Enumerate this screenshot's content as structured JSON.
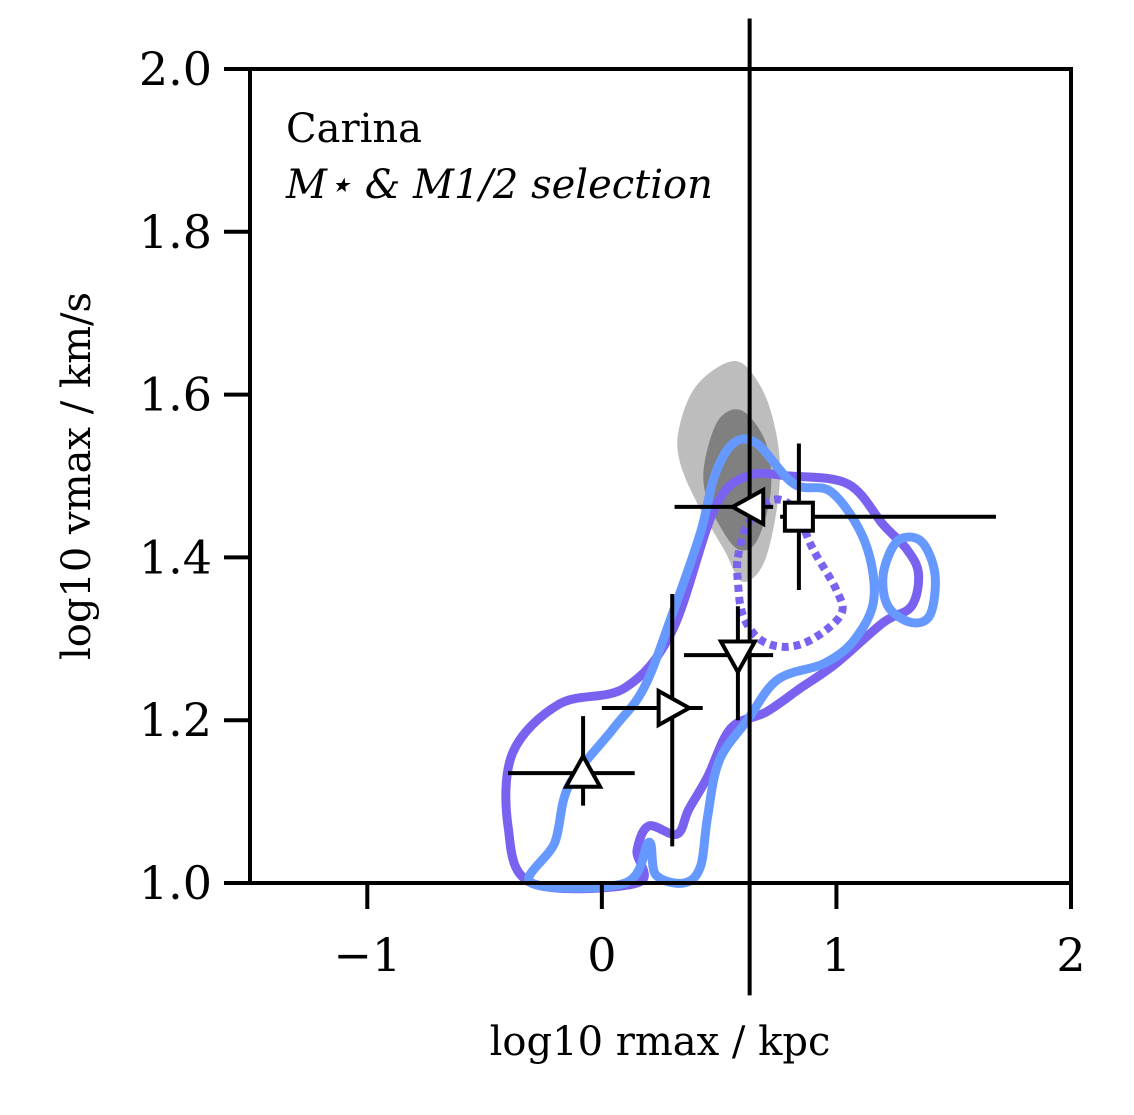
{
  "chart_data": {
    "type": "scatter",
    "title": "",
    "annotations": [
      "Carina",
      "M⋆ & M1/2 selection"
    ],
    "xlabel": "log10 rmax / kpc",
    "ylabel": "log10 vmax / km/s",
    "xlim": [
      -1.5,
      2
    ],
    "ylim": [
      1.0,
      2.0
    ],
    "xticks": [
      -1,
      0,
      1,
      2
    ],
    "xtick_labels": [
      "−1",
      "0",
      "1",
      "2"
    ],
    "yticks": [
      1.0,
      1.2,
      1.4,
      1.6,
      1.8,
      2.0
    ],
    "ytick_labels": [
      "1.0",
      "1.2",
      "1.4",
      "1.6",
      "1.8",
      "2.0"
    ],
    "grid": false,
    "colors": {
      "grey_outer": "#bdbdbd",
      "grey_inner": "#808080",
      "purple": "#7b61f0",
      "blue": "#6699ff",
      "errorbar": "#000000"
    },
    "points": [
      {
        "marker": "triangle-up",
        "x": -0.08,
        "y": 1.135,
        "xerr": [
          0.32,
          0.22
        ],
        "yerr": [
          0.04,
          0.07
        ]
      },
      {
        "marker": "triangle-right",
        "x": 0.3,
        "y": 1.215,
        "xerr": [
          0.3,
          0.13
        ],
        "yerr": [
          0.17,
          0.14
        ]
      },
      {
        "marker": "triangle-down",
        "x": 0.58,
        "y": 1.28,
        "xerr": [
          0.23,
          0.15
        ],
        "yerr": [
          0.08,
          0.06
        ]
      },
      {
        "marker": "triangle-left",
        "x": 0.63,
        "y": 1.462,
        "xerr": [
          0.32,
          0.1
        ],
        "yerr": [
          0.6,
          0.6
        ]
      },
      {
        "marker": "square",
        "x": 0.84,
        "y": 1.45,
        "xerr": [
          0.08,
          0.84
        ],
        "yerr": [
          0.09,
          0.09
        ]
      }
    ],
    "contours": [
      {
        "color": "grey_outer",
        "style": "filled",
        "pts": [
          [
            0.33,
            1.56
          ],
          [
            0.4,
            1.61
          ],
          [
            0.54,
            1.64
          ],
          [
            0.63,
            1.63
          ],
          [
            0.72,
            1.58
          ],
          [
            0.76,
            1.5
          ],
          [
            0.7,
            1.4
          ],
          [
            0.6,
            1.37
          ],
          [
            0.52,
            1.41
          ],
          [
            0.4,
            1.47
          ],
          [
            0.33,
            1.52
          ]
        ]
      },
      {
        "color": "grey_inner",
        "style": "filled",
        "pts": [
          [
            0.44,
            1.52
          ],
          [
            0.5,
            1.57
          ],
          [
            0.6,
            1.58
          ],
          [
            0.7,
            1.54
          ],
          [
            0.72,
            1.48
          ],
          [
            0.66,
            1.42
          ],
          [
            0.58,
            1.41
          ],
          [
            0.5,
            1.44
          ],
          [
            0.44,
            1.48
          ]
        ]
      },
      {
        "color": "purple",
        "style": "solid",
        "pts": [
          [
            -0.3,
            1.0
          ],
          [
            -0.4,
            1.07
          ],
          [
            -0.38,
            1.16
          ],
          [
            -0.18,
            1.22
          ],
          [
            0.1,
            1.24
          ],
          [
            0.3,
            1.31
          ],
          [
            0.48,
            1.46
          ],
          [
            0.62,
            1.5
          ],
          [
            0.8,
            1.5
          ],
          [
            1.05,
            1.49
          ],
          [
            1.2,
            1.44
          ],
          [
            1.3,
            1.41
          ],
          [
            1.35,
            1.38
          ],
          [
            1.32,
            1.34
          ],
          [
            1.2,
            1.32
          ],
          [
            1.0,
            1.27
          ],
          [
            0.85,
            1.24
          ],
          [
            0.7,
            1.21
          ],
          [
            0.55,
            1.19
          ],
          [
            0.45,
            1.13
          ],
          [
            0.37,
            1.09
          ],
          [
            0.32,
            1.06
          ],
          [
            0.2,
            1.07
          ],
          [
            0.15,
            1.04
          ],
          [
            0.15,
            1.0
          ]
        ]
      },
      {
        "color": "purple",
        "style": "dotted",
        "pts": [
          [
            0.58,
            1.4
          ],
          [
            0.62,
            1.44
          ],
          [
            0.72,
            1.47
          ],
          [
            0.82,
            1.46
          ],
          [
            0.9,
            1.41
          ],
          [
            1.0,
            1.36
          ],
          [
            1.02,
            1.33
          ],
          [
            0.9,
            1.3
          ],
          [
            0.78,
            1.29
          ],
          [
            0.67,
            1.3
          ],
          [
            0.6,
            1.33
          ],
          [
            0.58,
            1.37
          ]
        ]
      },
      {
        "color": "blue",
        "style": "solid",
        "pts": [
          [
            -0.3,
            1.0
          ],
          [
            -0.2,
            1.05
          ],
          [
            -0.14,
            1.12
          ],
          [
            0.05,
            1.19
          ],
          [
            0.18,
            1.24
          ],
          [
            0.3,
            1.33
          ],
          [
            0.42,
            1.43
          ],
          [
            0.48,
            1.5
          ],
          [
            0.56,
            1.54
          ],
          [
            0.66,
            1.54
          ],
          [
            0.82,
            1.49
          ],
          [
            0.98,
            1.48
          ],
          [
            1.12,
            1.42
          ],
          [
            1.16,
            1.35
          ],
          [
            1.08,
            1.3
          ],
          [
            0.95,
            1.27
          ],
          [
            0.75,
            1.25
          ],
          [
            0.62,
            1.2
          ],
          [
            0.5,
            1.15
          ],
          [
            0.45,
            1.08
          ],
          [
            0.42,
            1.02
          ],
          [
            0.35,
            1.0
          ],
          [
            0.23,
            1.01
          ],
          [
            0.2,
            1.05
          ],
          [
            0.1,
            1.0
          ]
        ]
      },
      {
        "color": "blue",
        "style": "solid",
        "pts": [
          [
            1.2,
            1.38
          ],
          [
            1.26,
            1.42
          ],
          [
            1.36,
            1.42
          ],
          [
            1.42,
            1.38
          ],
          [
            1.4,
            1.33
          ],
          [
            1.32,
            1.32
          ],
          [
            1.22,
            1.34
          ]
        ]
      }
    ]
  }
}
